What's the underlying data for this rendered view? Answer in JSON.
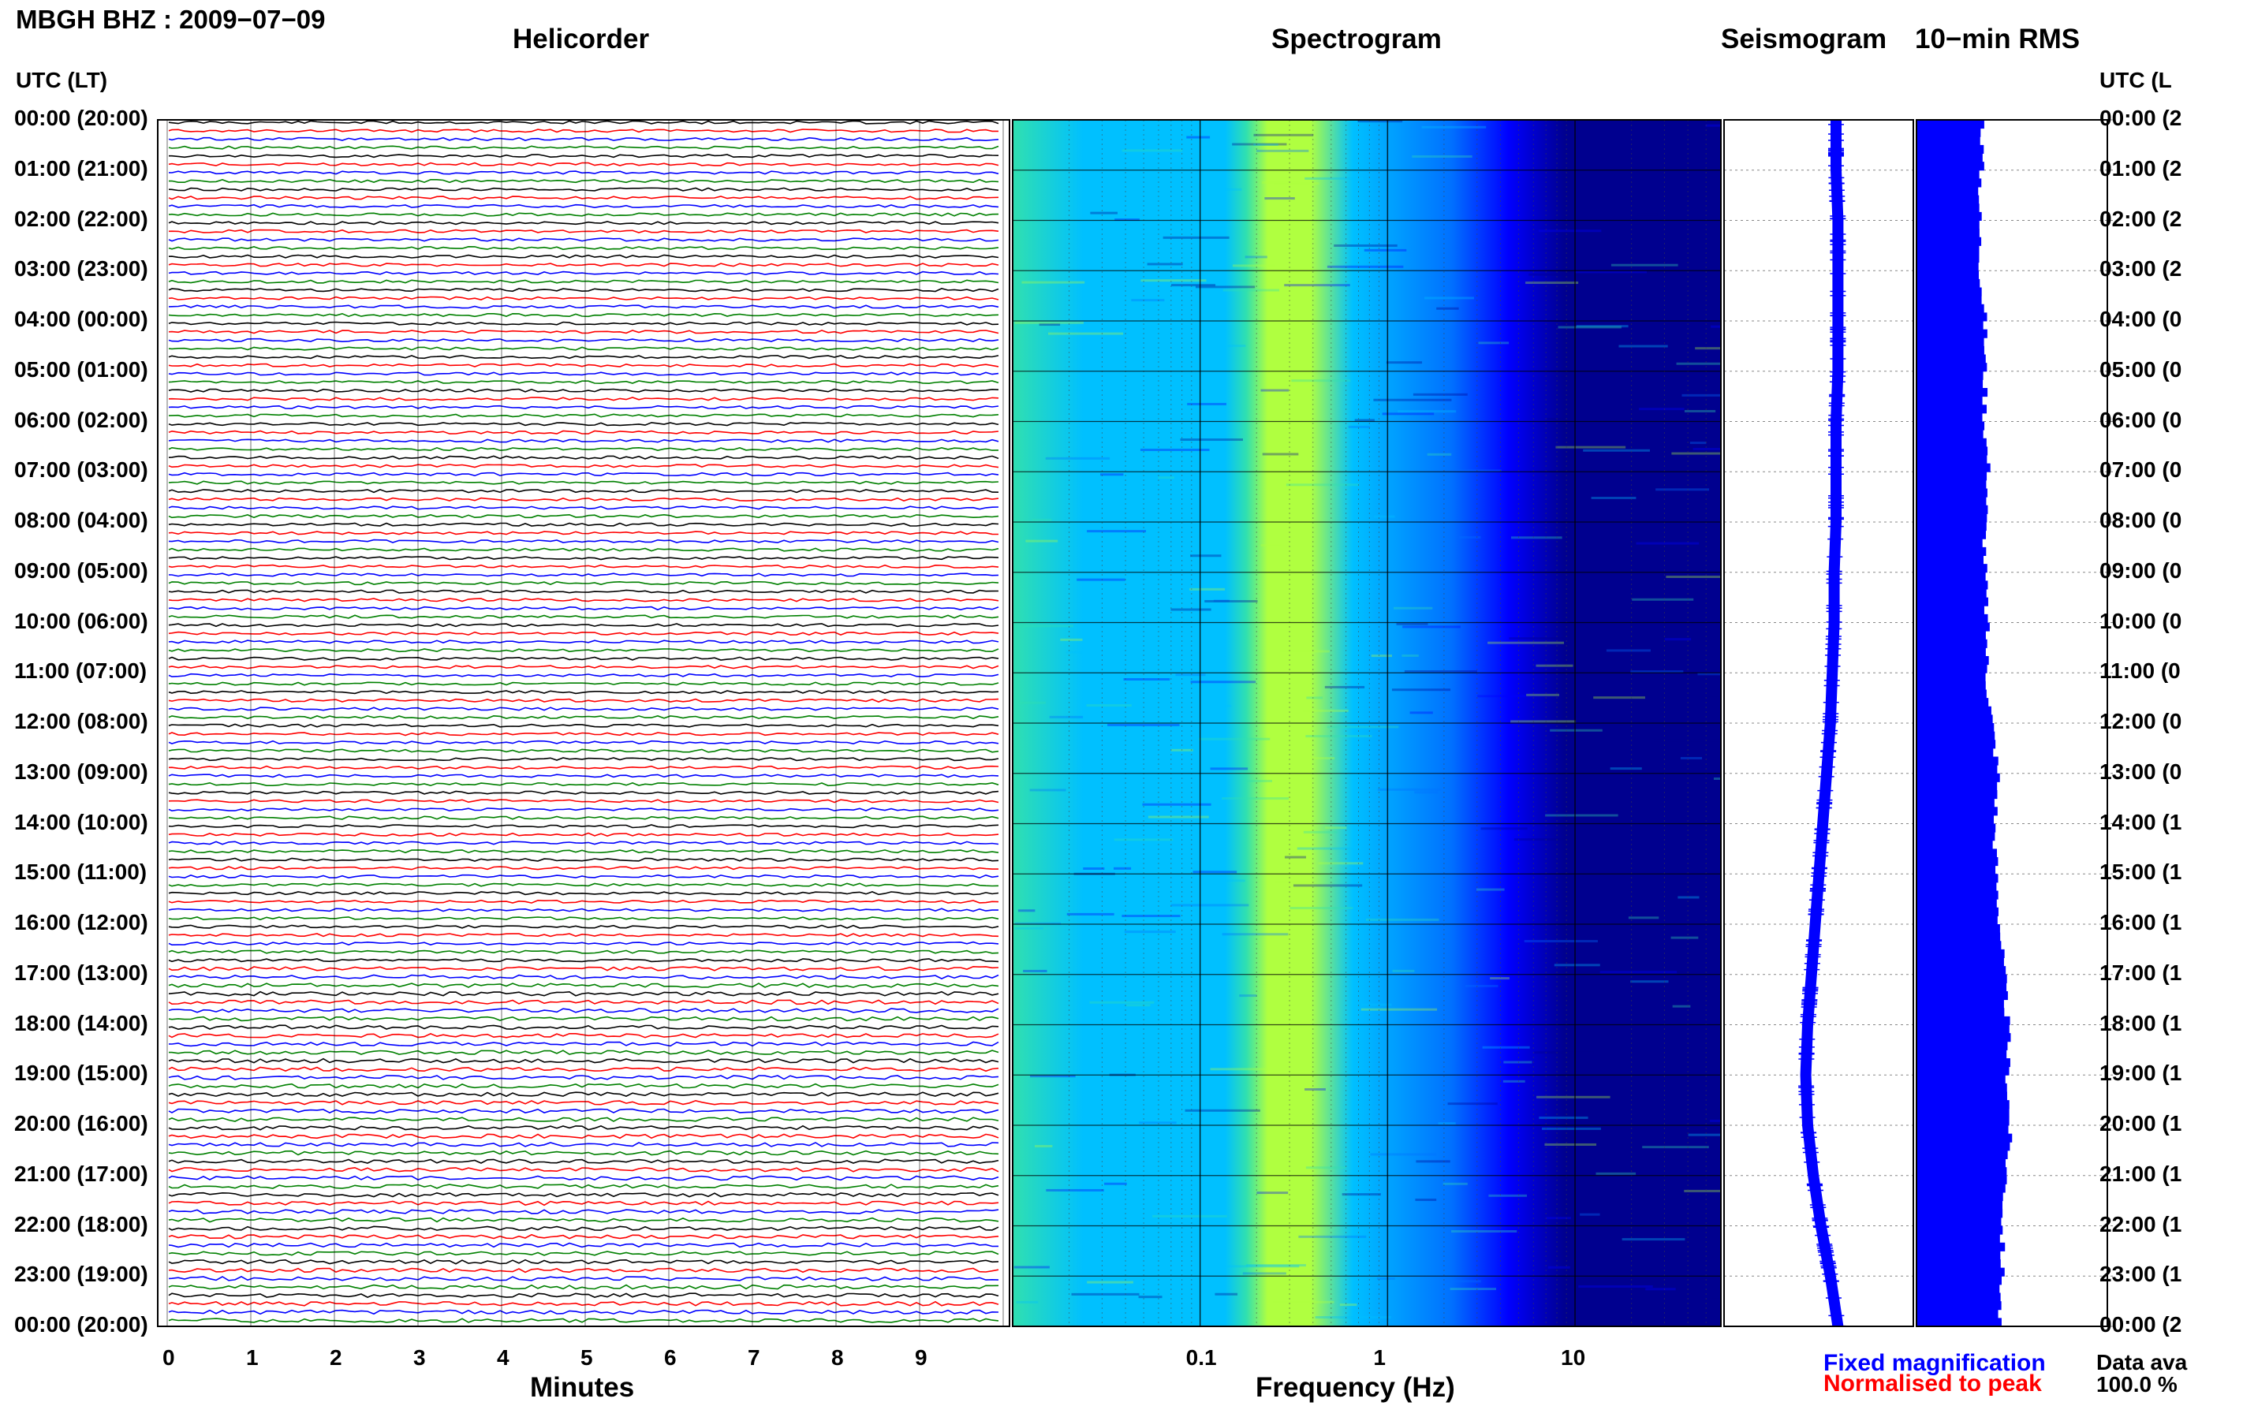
{
  "header": {
    "station_title": "MBGH BHZ : 2009−07−09"
  },
  "sections": {
    "helicorder": "Helicorder",
    "spectrogram": "Spectrogram",
    "seismogram": "Seismogram",
    "rms": "10−min RMS"
  },
  "time_axis": {
    "left_header": "UTC (LT)",
    "right_header": "UTC (L",
    "labels": [
      "00:00 (20:00)",
      "01:00 (21:00)",
      "02:00 (22:00)",
      "03:00 (23:00)",
      "04:00 (00:00)",
      "05:00 (01:00)",
      "06:00 (02:00)",
      "07:00 (03:00)",
      "08:00 (04:00)",
      "09:00 (05:00)",
      "10:00 (06:00)",
      "11:00 (07:00)",
      "12:00 (08:00)",
      "13:00 (09:00)",
      "14:00 (10:00)",
      "15:00 (11:00)",
      "16:00 (12:00)",
      "17:00 (13:00)",
      "18:00 (14:00)",
      "19:00 (15:00)",
      "20:00 (16:00)",
      "21:00 (17:00)",
      "22:00 (18:00)",
      "23:00 (19:00)",
      "00:00 (20:00)"
    ],
    "right_labels": [
      "00:00 (2",
      "01:00 (2",
      "02:00 (2",
      "03:00 (2",
      "04:00 (0",
      "05:00 (0",
      "06:00 (0",
      "07:00 (0",
      "08:00 (0",
      "09:00 (0",
      "10:00 (0",
      "11:00 (0",
      "12:00 (0",
      "13:00 (0",
      "14:00 (1",
      "15:00 (1",
      "16:00 (1",
      "17:00 (1",
      "18:00 (1",
      "19:00 (1",
      "20:00 (1",
      "21:00 (1",
      "22:00 (1",
      "23:00 (1",
      "00:00 (2"
    ]
  },
  "helicorder": {
    "xlabel": "Minutes",
    "ticks": [
      "0",
      "1",
      "2",
      "3",
      "4",
      "5",
      "6",
      "7",
      "8",
      "9"
    ],
    "trace_colors": [
      "#000000",
      "#ff0000",
      "#0000ff",
      "#008000"
    ]
  },
  "spectrogram": {
    "xlabel": "Frequency (Hz)",
    "ticks": [
      "0.1",
      "1",
      "10"
    ],
    "colors": [
      "#00008f",
      "#0000ff",
      "#0070ff",
      "#00c0ff",
      "#30e0b0",
      "#b0ff40"
    ]
  },
  "legend": {
    "fixed": "Fixed magnification",
    "normalised": "Normalised to peak",
    "availability_label": "Data ava",
    "availability_value": "100.0 %",
    "fixed_color": "#0000ff",
    "normalised_color": "#ff0000"
  },
  "chart_data": {
    "type": "line",
    "title": "MBGH BHZ : 2009−07−09",
    "series": [
      {
        "name": "Seismogram",
        "x": [
          "00:00",
          "01:00",
          "02:00",
          "03:00",
          "04:00",
          "05:00",
          "06:00",
          "07:00",
          "08:00",
          "09:00",
          "10:00",
          "11:00",
          "12:00",
          "13:00",
          "14:00",
          "15:00",
          "16:00",
          "17:00",
          "18:00",
          "19:00",
          "20:00",
          "21:00",
          "22:00",
          "23:00",
          "00:00"
        ],
        "values": [
          0.3,
          0.3,
          0.31,
          0.31,
          0.31,
          0.31,
          0.3,
          0.3,
          0.3,
          0.29,
          0.29,
          0.28,
          0.27,
          0.25,
          0.23,
          0.21,
          0.19,
          0.17,
          0.15,
          0.14,
          0.15,
          0.18,
          0.22,
          0.27,
          0.31
        ]
      },
      {
        "name": "10−min RMS",
        "x": [
          "00:00",
          "01:00",
          "02:00",
          "03:00",
          "04:00",
          "05:00",
          "06:00",
          "07:00",
          "08:00",
          "09:00",
          "10:00",
          "11:00",
          "12:00",
          "13:00",
          "14:00",
          "15:00",
          "16:00",
          "17:00",
          "18:00",
          "19:00",
          "20:00",
          "21:00",
          "22:00",
          "23:00",
          "00:00"
        ],
        "values": [
          0.35,
          0.34,
          0.33,
          0.34,
          0.36,
          0.36,
          0.36,
          0.38,
          0.36,
          0.36,
          0.37,
          0.37,
          0.4,
          0.43,
          0.41,
          0.42,
          0.44,
          0.46,
          0.48,
          0.48,
          0.49,
          0.47,
          0.45,
          0.45,
          0.43
        ]
      }
    ]
  }
}
